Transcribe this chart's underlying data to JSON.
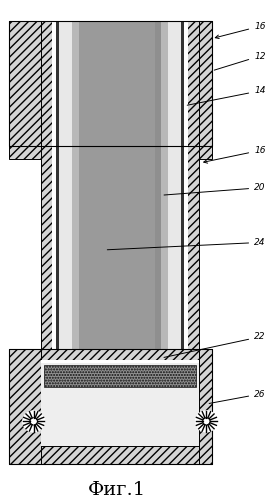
{
  "title": "Фиг.1",
  "title_fontsize": 14,
  "bg_color": "#ffffff",
  "fig_width": 2.68,
  "fig_height": 4.99,
  "dpi": 100,
  "xlim": [
    0,
    10
  ],
  "ylim": [
    0,
    19
  ],
  "colors": {
    "hatch_bg": "#d4d4d4",
    "white": "#ffffff",
    "light_dot": "#e8e8e8",
    "mid_gray": "#b8b8b8",
    "dark_gray": "#888888",
    "black": "#000000"
  }
}
